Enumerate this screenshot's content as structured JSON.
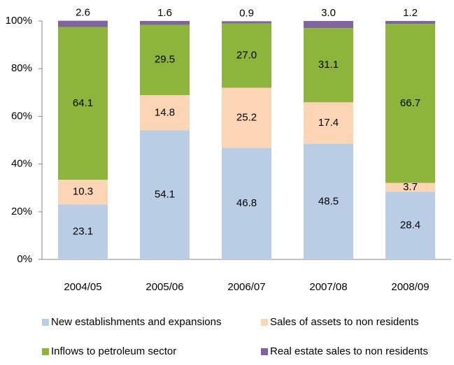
{
  "chart_data": {
    "type": "stacked_bar",
    "categories": [
      "2004/05",
      "2005/06",
      "2006/07",
      "2007/08",
      "2008/09"
    ],
    "series": [
      {
        "name": "New establishments and expansions",
        "color": "#b9cde5",
        "values": [
          23.1,
          54.1,
          46.8,
          48.5,
          28.4
        ],
        "value_labels": [
          "23.1",
          "54.1",
          "46.8",
          "48.5",
          "28.4"
        ]
      },
      {
        "name": "Sales of assets to non residents",
        "color": "#fcd5b5",
        "values": [
          10.3,
          14.8,
          25.2,
          17.4,
          3.7
        ],
        "value_labels": [
          "10.3",
          "14.8",
          "25.2",
          "17.4",
          "3.7"
        ]
      },
      {
        "name": "Inflows to petroleum sector",
        "color": "#8db53c",
        "values": [
          64.1,
          29.5,
          27.0,
          31.1,
          66.7
        ],
        "value_labels": [
          "64.1",
          "29.5",
          "27.0",
          "31.1",
          "66.7"
        ]
      },
      {
        "name": "Real estate sales to non residents",
        "color": "#8064a2",
        "values": [
          2.6,
          1.6,
          0.9,
          3.0,
          1.2
        ],
        "value_labels": [
          "2.6",
          "1.6",
          "0.9",
          "3.0",
          "1.2"
        ]
      }
    ],
    "ylim": [
      0,
      100
    ],
    "yticks": [
      {
        "value": 0,
        "label": "0%"
      },
      {
        "value": 20,
        "label": "20%"
      },
      {
        "value": 40,
        "label": "40%"
      },
      {
        "value": 60,
        "label": "60%"
      },
      {
        "value": 80,
        "label": "80%"
      },
      {
        "value": 100,
        "label": "100%"
      }
    ],
    "grid": false
  }
}
